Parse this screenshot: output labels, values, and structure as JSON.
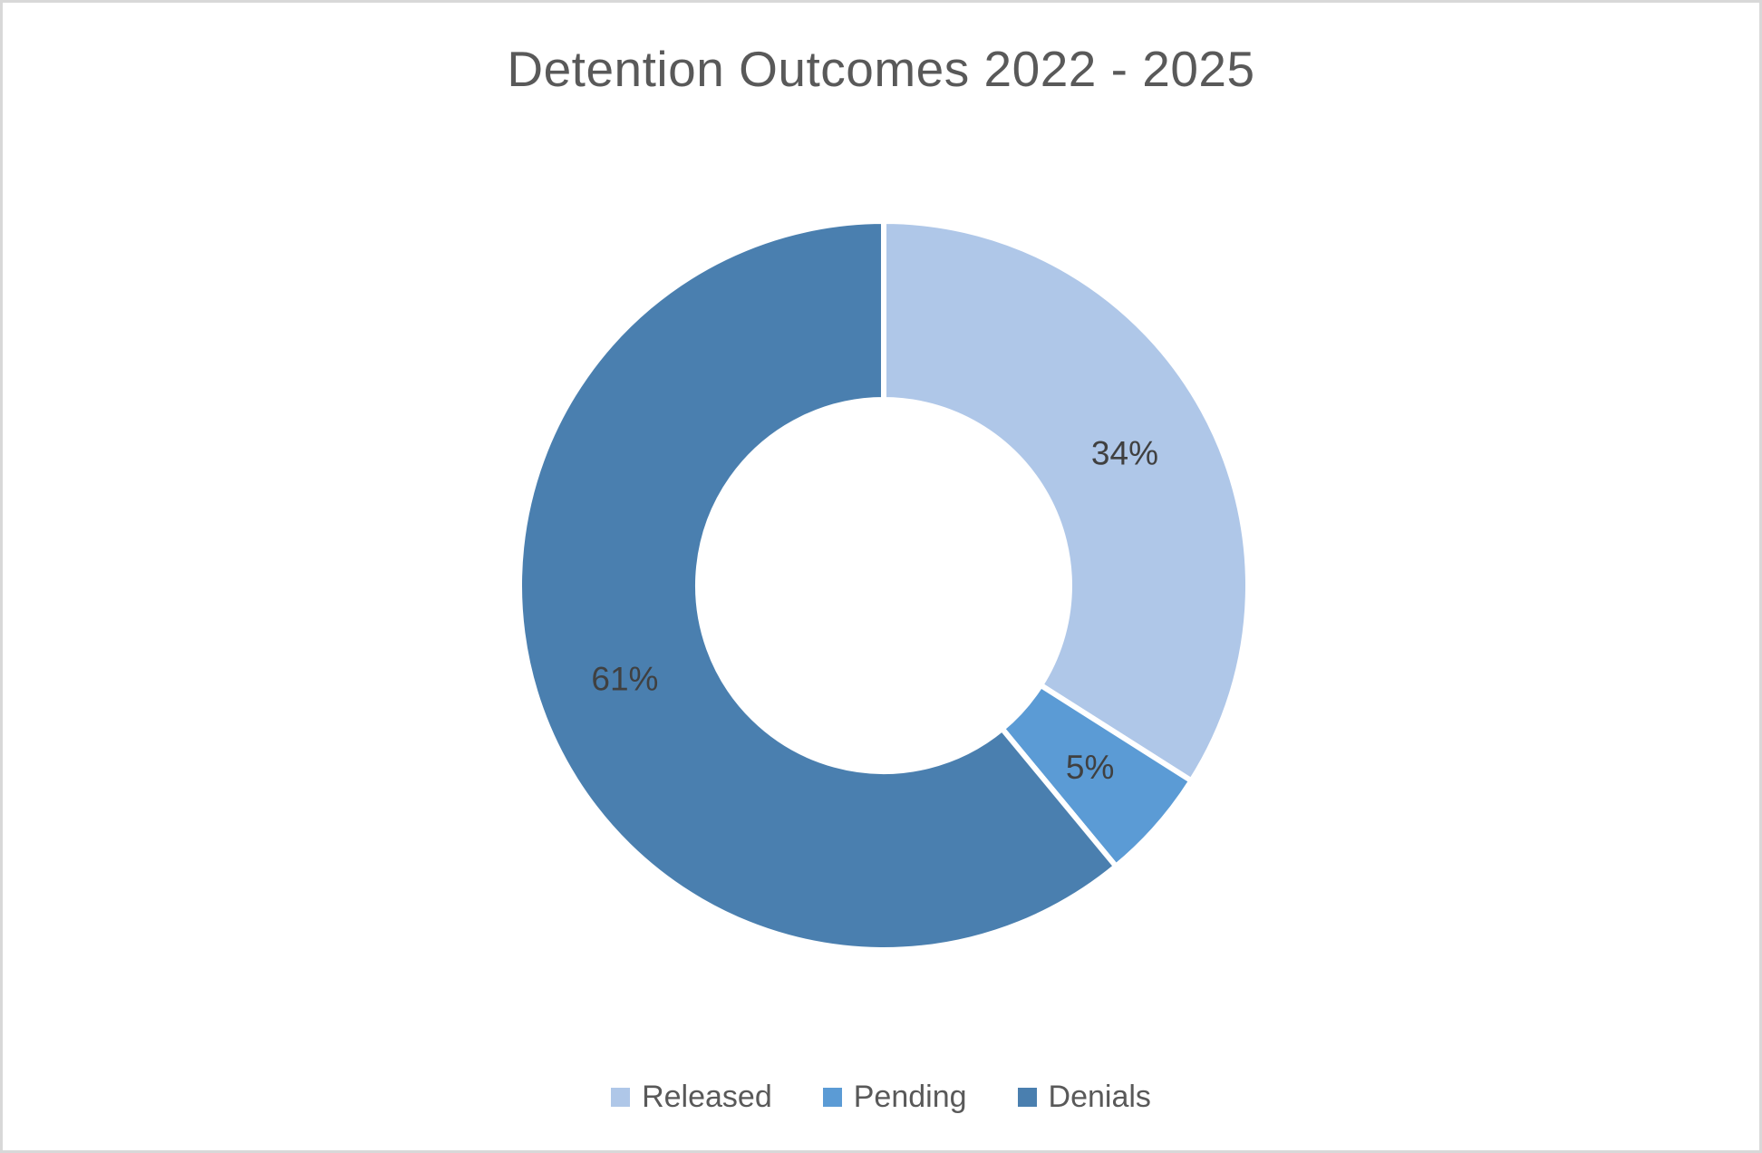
{
  "window": {
    "background": "#ffffff",
    "border_color": "#d8d8d8"
  },
  "chart_data": {
    "type": "pie",
    "subtype": "donut",
    "title": "Detention Outcomes 2022 - 2025",
    "categories": [
      "Released",
      "Pending",
      "Denials"
    ],
    "values": [
      34,
      5,
      61
    ],
    "data_labels": [
      "34%",
      "5%",
      "61%"
    ],
    "colors": [
      "#AFC7E8",
      "#5B9BD5",
      "#4A7FAF"
    ],
    "start_angle_deg": 0,
    "direction": "clockwise",
    "hole_ratio": 0.51,
    "slice_border_color": "#FFFFFF",
    "legend_position": "bottom",
    "title_color": "#595959",
    "label_color": "#404040",
    "legend_text_color": "#595959"
  }
}
